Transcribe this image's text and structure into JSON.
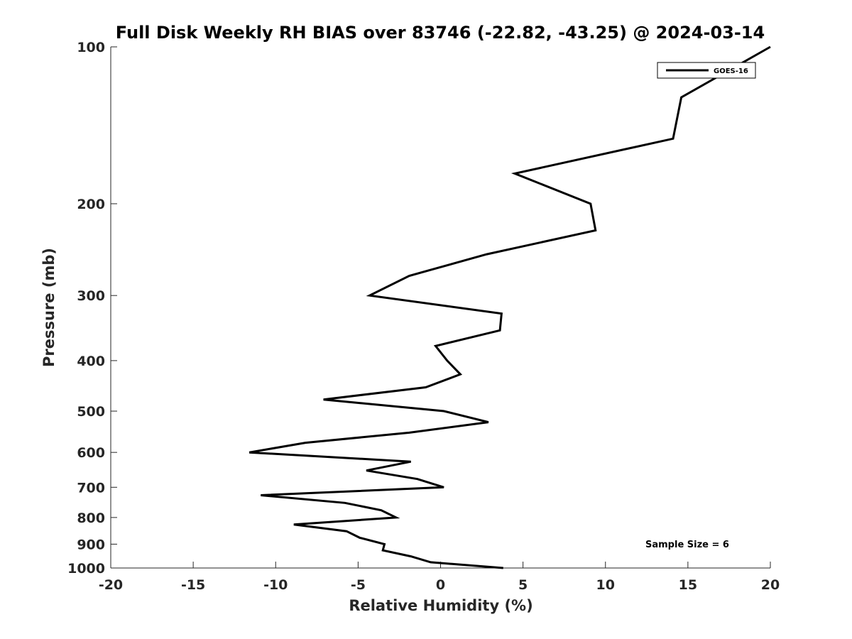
{
  "chart_data": {
    "type": "line",
    "title": "Full Disk Weekly RH BIAS over 83746 (-22.82, -43.25) @ 2024-03-14",
    "xlabel": "Relative Humidity (%)",
    "ylabel": "Pressure (mb)",
    "xlim": [
      -20,
      20
    ],
    "ylim": [
      100,
      1000
    ],
    "y_scale": "log",
    "y_reversed": true,
    "x_ticks": [
      "-20",
      "-15",
      "-10",
      "-5",
      "0",
      "5",
      "10",
      "15",
      "20"
    ],
    "y_ticks": [
      "100",
      "200",
      "300",
      "400",
      "500",
      "600",
      "700",
      "800",
      "900",
      "1000"
    ],
    "legend_position": "top-right",
    "grid": false,
    "series": [
      {
        "name": "GOES-16",
        "color": "#000000",
        "points": [
          [
            3.8,
            1000
          ],
          [
            -0.6,
            975
          ],
          [
            -1.8,
            950
          ],
          [
            -3.5,
            925
          ],
          [
            -3.4,
            900
          ],
          [
            -4.9,
            875
          ],
          [
            -5.7,
            850
          ],
          [
            -8.9,
            825
          ],
          [
            -2.7,
            800
          ],
          [
            -3.6,
            775
          ],
          [
            -5.8,
            750
          ],
          [
            -10.9,
            725
          ],
          [
            0.2,
            700
          ],
          [
            -1.4,
            675
          ],
          [
            -4.5,
            650
          ],
          [
            -1.8,
            625
          ],
          [
            -11.6,
            600
          ],
          [
            -8.2,
            575
          ],
          [
            -1.9,
            550
          ],
          [
            2.9,
            525
          ],
          [
            0.2,
            500
          ],
          [
            -7.1,
            475
          ],
          [
            -0.9,
            450
          ],
          [
            1.2,
            425
          ],
          [
            0.4,
            400
          ],
          [
            -0.3,
            375
          ],
          [
            3.6,
            350
          ],
          [
            3.7,
            325
          ],
          [
            -4.3,
            300
          ],
          [
            -1.9,
            275
          ],
          [
            2.8,
            250
          ],
          [
            9.4,
            225
          ],
          [
            9.1,
            200
          ],
          [
            4.5,
            175
          ],
          [
            14.1,
            150
          ],
          [
            14.6,
            125
          ],
          [
            20.0,
            100
          ]
        ]
      }
    ],
    "annotation": "Sample Size = 6"
  }
}
